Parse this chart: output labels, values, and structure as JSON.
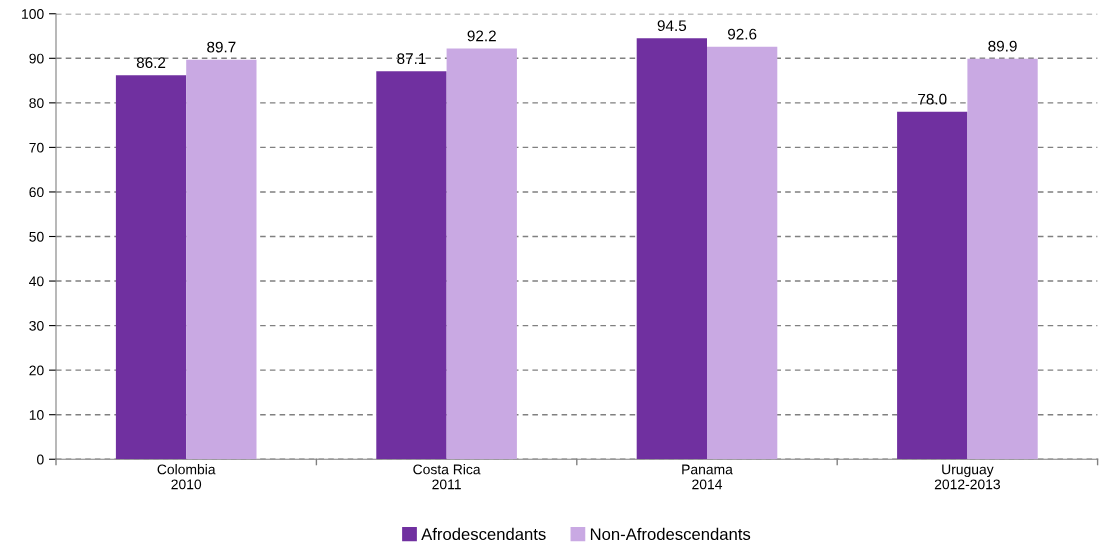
{
  "chart_data": {
    "type": "bar",
    "categories": [
      "Colombia\n2010",
      "Costa Rica\n2011",
      "Panama\n2014",
      "Uruguay\n2012-2013"
    ],
    "series": [
      {
        "name": "Afrodescendants",
        "color": "#7030a0",
        "values": [
          86.2,
          87.1,
          94.5,
          78.0
        ],
        "value_labels": [
          "86.2",
          "87.1",
          "94.5",
          "78.0"
        ]
      },
      {
        "name": "Non-Afrodescendants",
        "color": "#c9a9e3",
        "values": [
          89.7,
          92.2,
          92.6,
          89.9
        ],
        "value_labels": [
          "89.7",
          "92.2",
          "92.6",
          "89.9"
        ]
      }
    ],
    "ylim": [
      0,
      100
    ],
    "yticks": [
      0,
      10,
      20,
      30,
      40,
      50,
      60,
      70,
      80,
      90,
      100
    ],
    "grid": "y",
    "legend": "bottom"
  }
}
